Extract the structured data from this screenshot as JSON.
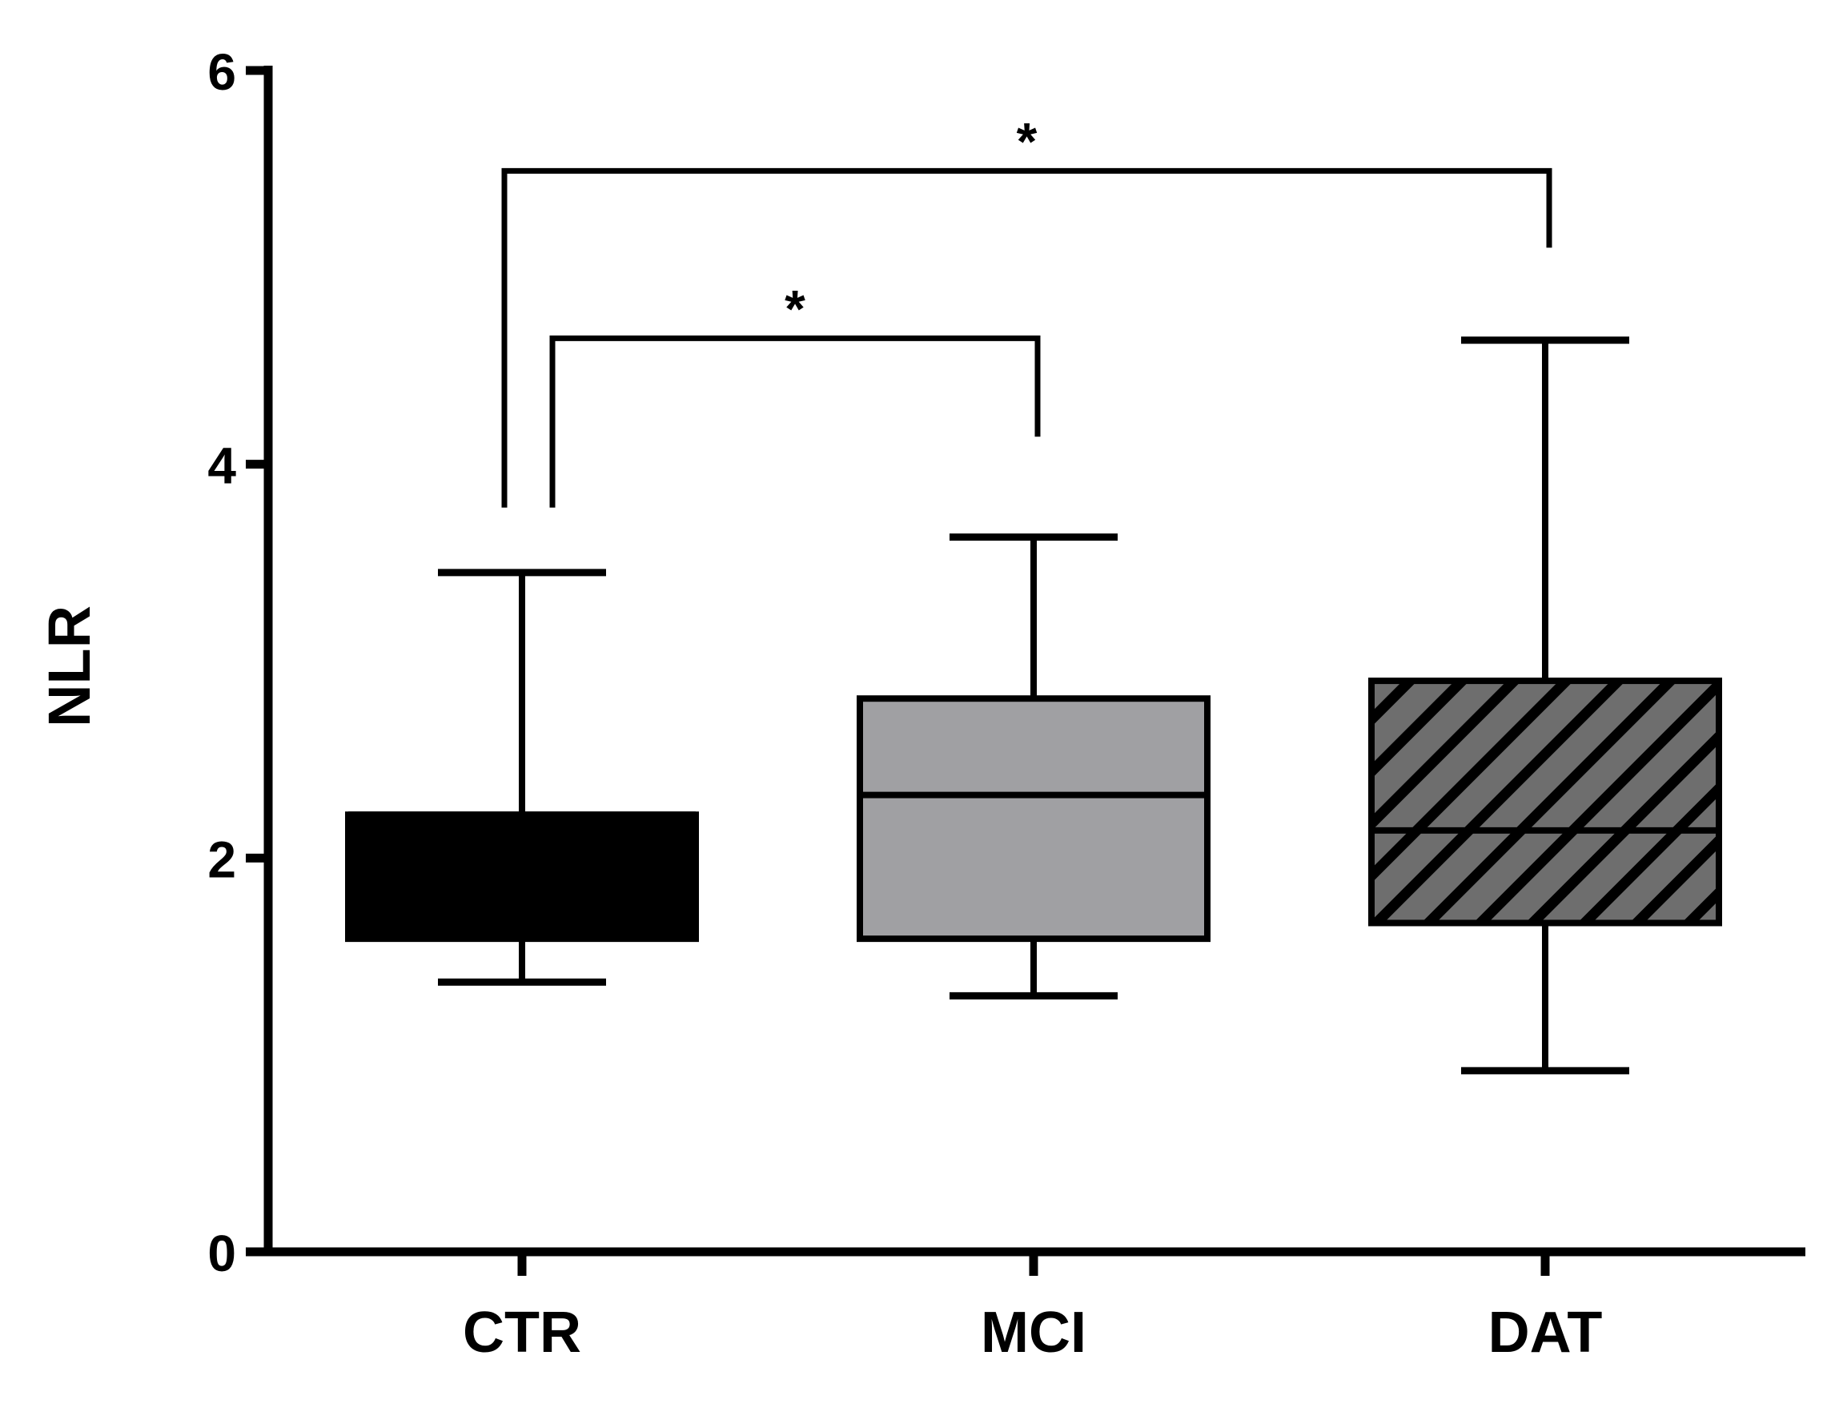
{
  "chart_data": {
    "type": "boxplot",
    "title": "",
    "xlabel": "",
    "ylabel": "NLR",
    "ylim": [
      0,
      6
    ],
    "yticks": [
      "0",
      "2",
      "4",
      "6"
    ],
    "ytick_values": [
      0,
      2,
      4,
      6
    ],
    "categories": [
      "CTR",
      "MCI",
      "DAT"
    ],
    "series": [
      {
        "name": "CTR",
        "whisker_low": 1.37,
        "q1": 1.59,
        "median": 2.22,
        "q3": 2.22,
        "whisker_high": 3.45,
        "fill": "#000000",
        "pattern": "solid"
      },
      {
        "name": "MCI",
        "whisker_low": 1.3,
        "q1": 1.59,
        "median": 2.32,
        "q3": 2.81,
        "whisker_high": 3.63,
        "fill": "#a0a0a3",
        "pattern": "solid"
      },
      {
        "name": "DAT",
        "whisker_low": 0.92,
        "q1": 1.67,
        "median": 2.14,
        "q3": 2.9,
        "whisker_high": 4.63,
        "fill": "#6e6e6e",
        "pattern": "hatched"
      }
    ],
    "annotations": [
      {
        "from": "CTR",
        "to": "MCI",
        "label": "*",
        "bracket_y": 4.64
      },
      {
        "from": "CTR",
        "to": "DAT",
        "label": "*",
        "bracket_y": 5.49
      }
    ]
  }
}
